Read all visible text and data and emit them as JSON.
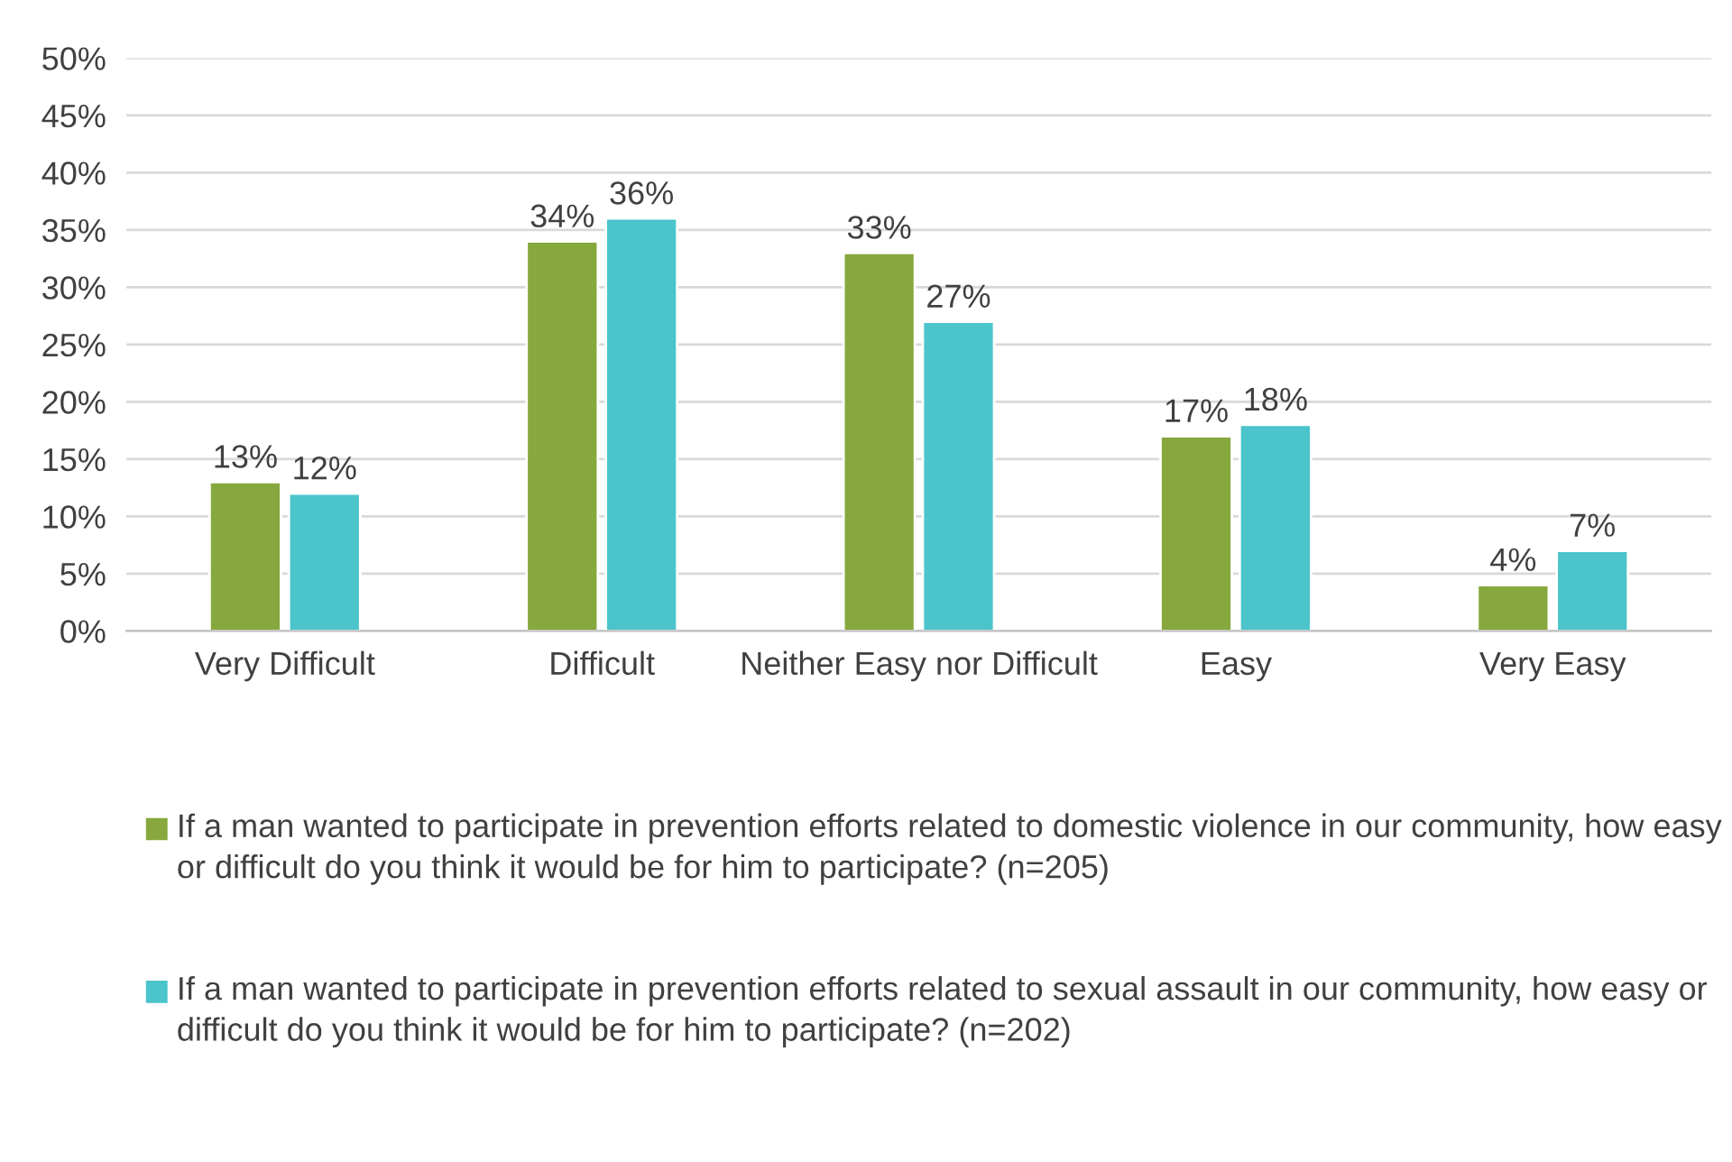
{
  "chart_data": {
    "type": "bar",
    "categories": [
      "Very Difficult",
      "Difficult",
      "Neither Easy nor Difficult",
      "Easy",
      "Very Easy"
    ],
    "series": [
      {
        "name": "If a man wanted to participate in prevention efforts related to domestic violence in our community, how easy or difficult do you think it would be for him to participate? (n=205)",
        "color": "#86a83e",
        "values": [
          13,
          34,
          33,
          17,
          4
        ],
        "value_labels": [
          "13%",
          "34%",
          "33%",
          "17%",
          "4%"
        ]
      },
      {
        "name": "If a man wanted to participate in prevention efforts related to sexual assault in our community, how easy or difficult do you think it would be for him to participate? (n=202)",
        "color": "#4bc4cb",
        "values": [
          12,
          36,
          27,
          18,
          7
        ],
        "value_labels": [
          "12%",
          "36%",
          "27%",
          "18%",
          "7%"
        ]
      }
    ],
    "ylim": [
      0,
      50
    ],
    "yticks": [
      {
        "value": 0,
        "label": "0%"
      },
      {
        "value": 5,
        "label": "5%"
      },
      {
        "value": 10,
        "label": "10%"
      },
      {
        "value": 15,
        "label": "15%"
      },
      {
        "value": 20,
        "label": "20%"
      },
      {
        "value": 25,
        "label": "25%"
      },
      {
        "value": 30,
        "label": "30%"
      },
      {
        "value": 35,
        "label": "35%"
      },
      {
        "value": 40,
        "label": "40%"
      },
      {
        "value": 45,
        "label": "45%"
      },
      {
        "value": 50,
        "label": "50%"
      }
    ],
    "grid": "y",
    "legend": "bottom"
  }
}
